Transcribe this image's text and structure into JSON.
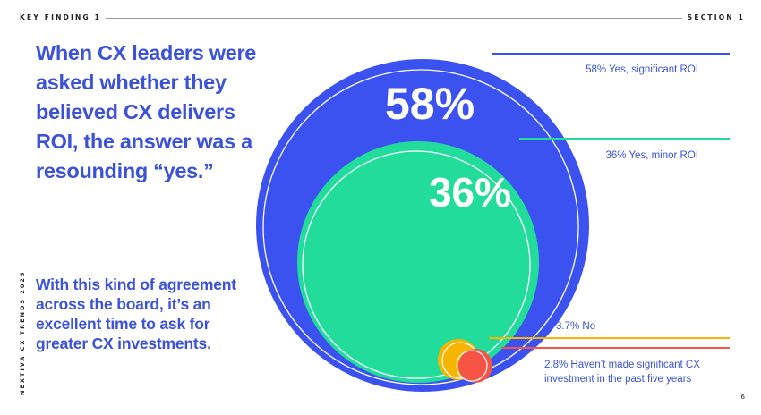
{
  "header": {
    "left_label": "KEY FINDING 1",
    "right_label": "SECTION 1"
  },
  "headline": "When CX leaders were asked whether they believed CX delivers ROI, the answer was a resounding “yes.”",
  "subtext": "With this kind of agreement across the board, it’s an excellent time to ask for greater CX investments.",
  "side_label": "NEXTIVA CX TRENDS 2025",
  "page_number": "6",
  "chart_data": {
    "type": "nested-bubble",
    "series": [
      {
        "value_label": "58%",
        "value": 58,
        "legend": "58% Yes, significant ROI",
        "color": "#3b52f0"
      },
      {
        "value_label": "36%",
        "value": 36,
        "legend": "36% Yes, minor ROI",
        "color": "#22dc9c"
      },
      {
        "value_label": "",
        "value": 3.7,
        "legend": "3.7% No",
        "color": "#f7b500"
      },
      {
        "value_label": "",
        "value": 2.8,
        "legend_lines": [
          "2.8% Haven’t made significant CX",
          "investment in the past five years"
        ],
        "color": "#f75446"
      }
    ]
  }
}
